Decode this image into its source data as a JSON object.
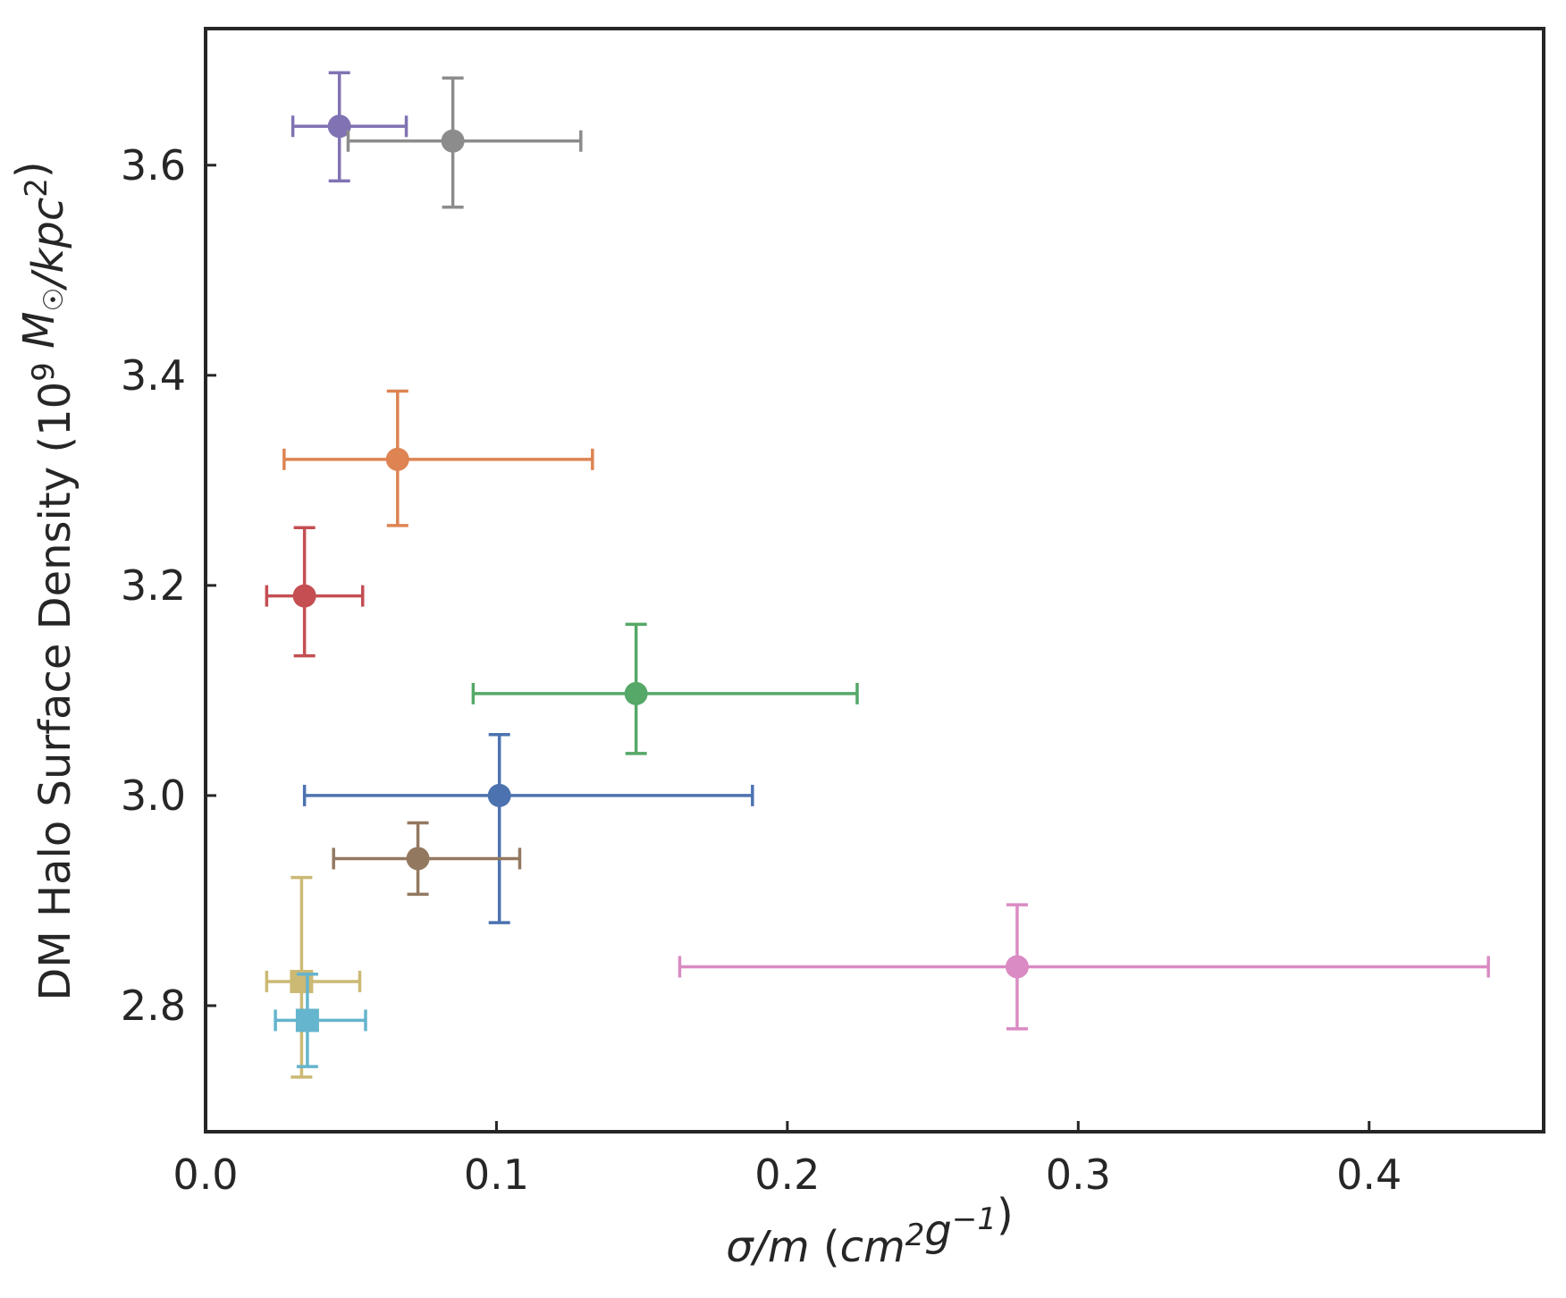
{
  "chart_data": {
    "type": "scatter",
    "title": "",
    "xlabel": "σ/m (cm²g⁻¹)",
    "ylabel": "DM Halo Surface Density (10⁹ M☉/kpc²)",
    "xlim": [
      0.0,
      0.46
    ],
    "ylim": [
      2.68,
      3.73
    ],
    "xticks": [
      0.0,
      0.1,
      0.2,
      0.3,
      0.4
    ],
    "xtick_labels": [
      "0.0",
      "0.1",
      "0.2",
      "0.3",
      "0.4"
    ],
    "yticks": [
      2.8,
      3.0,
      3.2,
      3.4,
      3.6
    ],
    "ytick_labels": [
      "2.8",
      "3.0",
      "3.2",
      "3.4",
      "3.6"
    ],
    "grid": false,
    "series": [
      {
        "name": "blue",
        "color": "#4c72b0",
        "marker": "circle",
        "x": 0.101,
        "y": 3.0,
        "xerr": [
          0.034,
          0.188
        ],
        "yerr": [
          2.879,
          3.058
        ]
      },
      {
        "name": "orange",
        "color": "#dd8452",
        "marker": "circle",
        "x": 0.066,
        "y": 3.32,
        "xerr": [
          0.027,
          0.133
        ],
        "yerr": [
          3.257,
          3.385
        ]
      },
      {
        "name": "green",
        "color": "#55a868",
        "marker": "circle",
        "x": 0.148,
        "y": 3.097,
        "xerr": [
          0.092,
          0.224
        ],
        "yerr": [
          3.04,
          3.163
        ]
      },
      {
        "name": "red",
        "color": "#c44e52",
        "marker": "circle",
        "x": 0.034,
        "y": 3.19,
        "xerr": [
          0.021,
          0.054
        ],
        "yerr": [
          3.133,
          3.255
        ]
      },
      {
        "name": "purple",
        "color": "#8172b3",
        "marker": "circle",
        "x": 0.046,
        "y": 3.637,
        "xerr": [
          0.03,
          0.069
        ],
        "yerr": [
          3.585,
          3.688
        ]
      },
      {
        "name": "brown",
        "color": "#937860",
        "marker": "circle",
        "x": 0.073,
        "y": 2.94,
        "xerr": [
          0.044,
          0.108
        ],
        "yerr": [
          2.906,
          2.974
        ]
      },
      {
        "name": "pink",
        "color": "#da8bc3",
        "marker": "circle",
        "x": 0.279,
        "y": 2.837,
        "xerr": [
          0.163,
          0.441
        ],
        "yerr": [
          2.778,
          2.896
        ]
      },
      {
        "name": "gray",
        "color": "#8c8c8c",
        "marker": "circle",
        "x": 0.085,
        "y": 3.623,
        "xerr": [
          0.049,
          0.129
        ],
        "yerr": [
          3.56,
          3.683
        ]
      },
      {
        "name": "olive",
        "color": "#ccb974",
        "marker": "square",
        "x": 0.033,
        "y": 2.823,
        "xerr": [
          0.021,
          0.053
        ],
        "yerr": [
          2.732,
          2.922
        ]
      },
      {
        "name": "cyan",
        "color": "#64b5cd",
        "marker": "square",
        "x": 0.035,
        "y": 2.786,
        "xerr": [
          0.024,
          0.055
        ],
        "yerr": [
          2.742,
          2.83
        ]
      }
    ]
  }
}
